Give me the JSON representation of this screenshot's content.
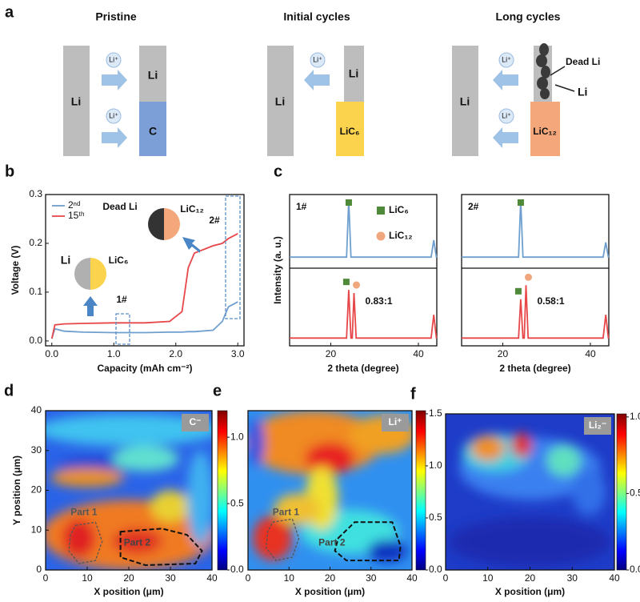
{
  "schematic": {
    "label": "a",
    "stages": [
      {
        "title": "Pristine",
        "anode": "Li",
        "ions": [
          "Li⁺",
          "Li⁺"
        ],
        "top": "Li",
        "bottom": "C"
      },
      {
        "title": "Initial cycles",
        "anode": "Li",
        "ions": [
          "Li⁺"
        ],
        "top": "Li",
        "bottom": "LiC₆"
      },
      {
        "title": "Long cycles",
        "anode": "Li",
        "ions": [
          "Li⁺",
          "Li⁺"
        ],
        "top": "Li",
        "bottom": "LiC₁₂",
        "dead": "Dead Li"
      }
    ]
  },
  "chart_data": [
    {
      "type": "line",
      "label": "b",
      "xlabel": "Capacity (mAh cm⁻²)",
      "ylabel": "Voltage (V)",
      "x": [
        0,
        0.05,
        0.2,
        0.5,
        1.0,
        1.5,
        1.9,
        2.1,
        2.2,
        2.3,
        2.6,
        2.75,
        2.85,
        3.0
      ],
      "series": [
        {
          "name": "2ⁿᵈ",
          "color": "#6f9fcf",
          "values": [
            0.005,
            0.025,
            0.02,
            0.018,
            0.017,
            0.017,
            0.018,
            0.018,
            0.019,
            0.019,
            0.022,
            0.04,
            0.07,
            0.08
          ]
        },
        {
          "name": "15ᵗʰ",
          "color": "#e8474a",
          "values": [
            0.005,
            0.033,
            0.035,
            0.036,
            0.037,
            0.037,
            0.04,
            0.06,
            0.15,
            0.18,
            0.195,
            0.2,
            0.21,
            0.22
          ]
        }
      ],
      "xlim": [
        -0.1,
        3.1
      ],
      "xticks": [
        {
          "value": 0,
          "label": "0.0"
        },
        {
          "value": 1,
          "label": "1.0"
        },
        {
          "value": 2,
          "label": "2.0"
        },
        {
          "value": 3,
          "label": "3.0"
        }
      ],
      "ylim": [
        -0.01,
        0.3
      ],
      "yticks": [
        {
          "value": 0,
          "label": "0.0"
        },
        0.1,
        0.2,
        0.3
      ],
      "legend": "upper left",
      "insets": [
        [
          "Dead Li",
          "LiC₁₂"
        ],
        [
          "Li",
          "LiC₆"
        ]
      ],
      "markers": [
        "1#",
        "2#"
      ]
    },
    {
      "type": "xrd",
      "label": "c",
      "title": "1#",
      "ylabel": "Intensity (a. u.)",
      "xlabel": "2 theta (degree)",
      "x": [
        10.6,
        23.6,
        24.1,
        24.6,
        24.9,
        25.3,
        25.8,
        42.9,
        43.5,
        44.1,
        44.2
      ],
      "series": [
        {
          "color": "#6f9fcf",
          "values": [
            0.15,
            0.15,
            0.92,
            0.15,
            0.15,
            0.15,
            0.15,
            0.15,
            0.38,
            0.15,
            0.15
          ]
        },
        {
          "color": "#e8474a",
          "values": [
            0.1,
            0.1,
            0.72,
            0.1,
            0.1,
            0.68,
            0.1,
            0.1,
            0.4,
            0.1,
            0.1
          ]
        }
      ],
      "xlim": [
        10.6,
        44.2
      ],
      "xticks": [
        20,
        40
      ],
      "ylim": [
        0,
        1
      ],
      "legend": [
        {
          "name": "LiC₆",
          "color": "#4e8a3a"
        },
        {
          "name": "LiC₁₂",
          "color": "#f0a77e"
        }
      ],
      "ratio": "0.83:1"
    },
    {
      "type": "xrd",
      "title": "2#",
      "xlabel": "2 theta (degree)",
      "x": [
        10.6,
        23.6,
        24.1,
        24.6,
        24.9,
        25.3,
        25.8,
        42.9,
        43.5,
        44.1,
        44.2
      ],
      "series": [
        {
          "color": "#6f9fcf",
          "values": [
            0.15,
            0.15,
            0.92,
            0.15,
            0.15,
            0.15,
            0.15,
            0.15,
            0.35,
            0.15,
            0.15
          ]
        },
        {
          "color": "#e8474a",
          "values": [
            0.1,
            0.1,
            0.6,
            0.1,
            0.1,
            0.78,
            0.1,
            0.1,
            0.4,
            0.1,
            0.1
          ]
        }
      ],
      "xlim": [
        10.6,
        44.2
      ],
      "xticks": [
        20,
        40
      ],
      "ylim": [
        0,
        1
      ],
      "ratio": "0.58:1"
    },
    {
      "type": "heatmap",
      "label": "d",
      "species": "C⁻",
      "xlabel": "X position (μm)",
      "ylabel": "Y position (μm)",
      "xlim": [
        0,
        40
      ],
      "xticks": [
        0,
        10,
        20,
        30,
        40
      ],
      "ylim": [
        0,
        40
      ],
      "yticks": [
        0,
        10,
        20,
        30,
        40
      ],
      "clim": [
        0,
        1.2
      ],
      "cticks": [
        {
          "value": 0,
          "label": "0.0"
        },
        0.5,
        {
          "value": 1,
          "label": "1.0"
        }
      ],
      "regions": [
        "Part 1",
        "Part 2"
      ]
    },
    {
      "type": "heatmap",
      "label": "e",
      "species": "Li⁺",
      "xlabel": "X position (μm)",
      "xlim": [
        0,
        40
      ],
      "xticks": [
        0,
        10,
        20,
        30,
        40
      ],
      "ylim": [
        0,
        40
      ],
      "clim": [
        0,
        1.53
      ],
      "cticks": [
        {
          "value": 0,
          "label": "0.0"
        },
        0.5,
        {
          "value": 1,
          "label": "1.0"
        },
        1.5
      ],
      "regions": [
        "Part 1",
        "Part 2"
      ]
    },
    {
      "type": "heatmap",
      "label": "f",
      "species": "Li₂⁻",
      "xlabel": "X position (μm)",
      "xlim": [
        0,
        40
      ],
      "xticks": [
        0,
        10,
        20,
        30,
        40
      ],
      "clim": [
        0,
        1.02
      ],
      "cticks": [
        {
          "value": 0,
          "label": "0.0"
        },
        0.5,
        {
          "value": 1,
          "label": "1.0"
        }
      ]
    }
  ]
}
